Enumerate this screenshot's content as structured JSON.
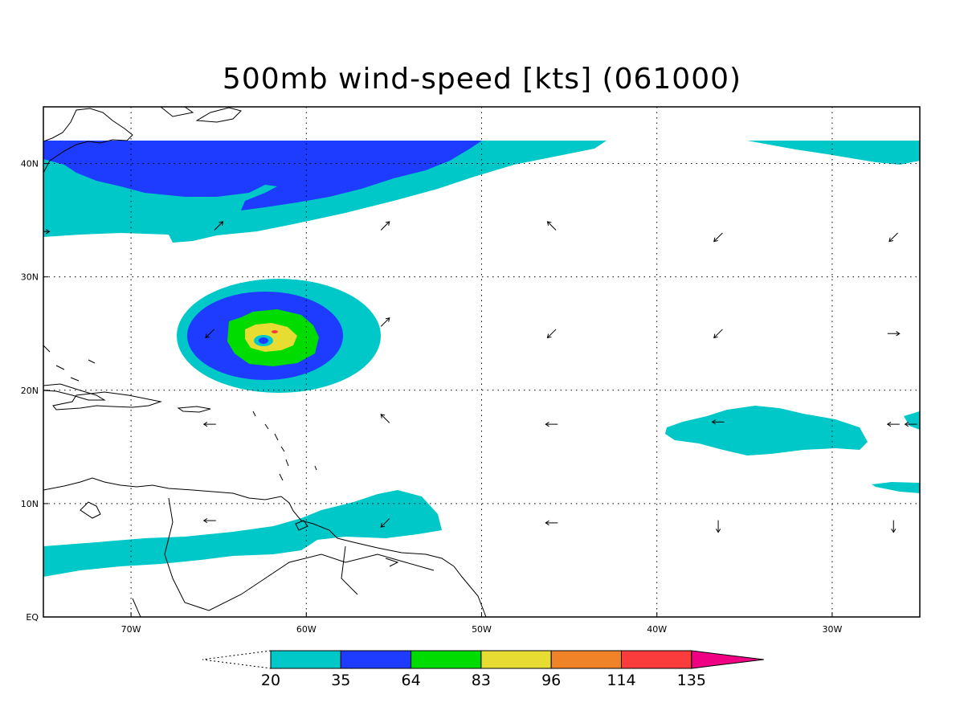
{
  "title": "500mb wind-speed [kts] (061000)",
  "map": {
    "lon_range": [
      -75,
      -25
    ],
    "lat_range": [
      0,
      45
    ],
    "lon_ticks": [
      {
        "value": -70,
        "label": "70W"
      },
      {
        "value": -60,
        "label": "60W"
      },
      {
        "value": -50,
        "label": "50W"
      },
      {
        "value": -40,
        "label": "40W"
      },
      {
        "value": -30,
        "label": "30W"
      }
    ],
    "lat_ticks": [
      {
        "value": 0,
        "label": "EQ"
      },
      {
        "value": 10,
        "label": "10N"
      },
      {
        "value": 20,
        "label": "20N"
      },
      {
        "value": 30,
        "label": "30N"
      },
      {
        "value": 40,
        "label": "40N"
      }
    ],
    "grid": true,
    "hurricane_center": {
      "lon": -62.5,
      "lat": 24.3
    }
  },
  "colorbar": {
    "levels": [
      "20",
      "35",
      "64",
      "83",
      "96",
      "114",
      "135"
    ],
    "colors": [
      "#00c8c8",
      "#1e3cff",
      "#00dc00",
      "#e6dc32",
      "#f08228",
      "#fa3c3c",
      "#f00082"
    ],
    "lower_extend": "open",
    "upper_extend": "#f00082"
  },
  "wind_vectors": [
    {
      "lon": -65,
      "lat": 34.5,
      "dir": "NE"
    },
    {
      "lon": -55.5,
      "lat": 34.5,
      "dir": "NE"
    },
    {
      "lon": -46,
      "lat": 34.5,
      "dir": "NW"
    },
    {
      "lon": -36.5,
      "lat": 33.5,
      "dir": "SW"
    },
    {
      "lon": -26.5,
      "lat": 33.5,
      "dir": "SW"
    },
    {
      "lon": -75,
      "lat": 34,
      "dir": "E"
    },
    {
      "lon": -65.5,
      "lat": 25,
      "dir": "SW"
    },
    {
      "lon": -55.5,
      "lat": 26,
      "dir": "NE"
    },
    {
      "lon": -46,
      "lat": 25,
      "dir": "SW"
    },
    {
      "lon": -36.5,
      "lat": 25,
      "dir": "SW"
    },
    {
      "lon": -26.5,
      "lat": 25,
      "dir": "E"
    },
    {
      "lon": -65.5,
      "lat": 17,
      "dir": "W"
    },
    {
      "lon": -55.5,
      "lat": 17.5,
      "dir": "NW"
    },
    {
      "lon": -46,
      "lat": 17,
      "dir": "W"
    },
    {
      "lon": -36.5,
      "lat": 17.2,
      "dir": "W"
    },
    {
      "lon": -26.5,
      "lat": 17,
      "dir": "W"
    },
    {
      "lon": -25.5,
      "lat": 17,
      "dir": "W"
    },
    {
      "lon": -65.5,
      "lat": 8.5,
      "dir": "W"
    },
    {
      "lon": -55.5,
      "lat": 8.3,
      "dir": "SW"
    },
    {
      "lon": -46,
      "lat": 8.3,
      "dir": "W"
    },
    {
      "lon": -36.5,
      "lat": 8,
      "dir": "S"
    },
    {
      "lon": -26.5,
      "lat": 8,
      "dir": "S"
    }
  ]
}
